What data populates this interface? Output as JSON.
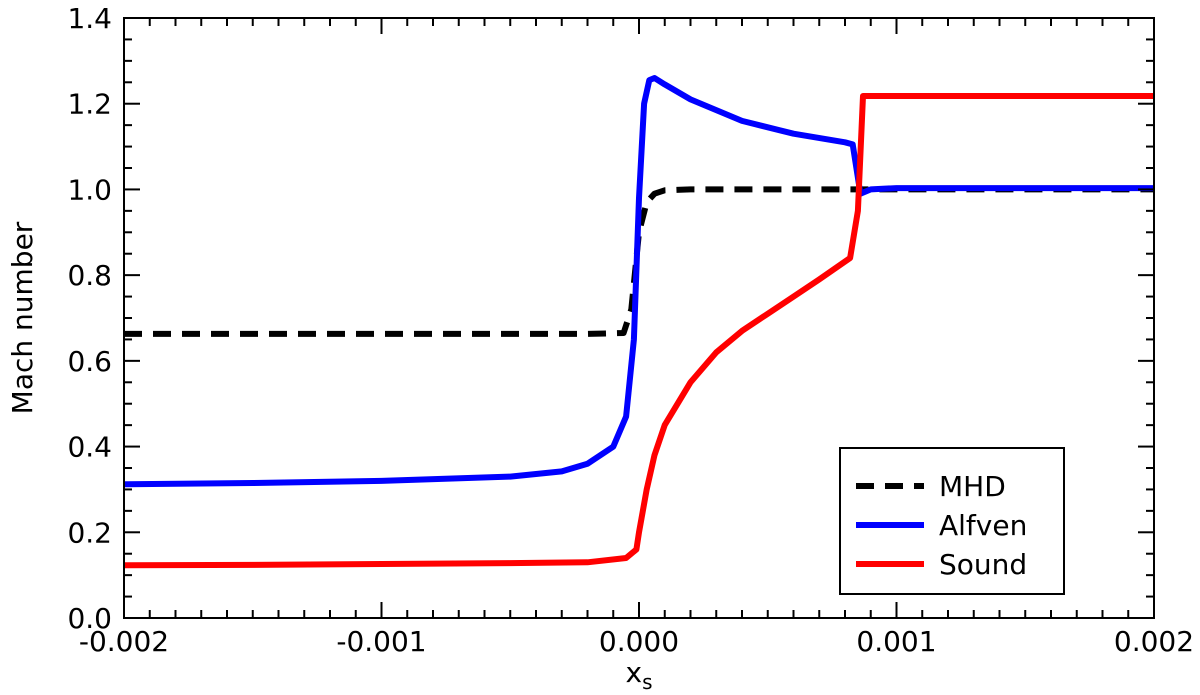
{
  "chart_data": {
    "type": "line",
    "title": "",
    "xlabel": "x",
    "xlabel_subscript": "s",
    "ylabel": "Mach number",
    "xlim": [
      -0.002,
      0.002
    ],
    "ylim": [
      0.0,
      1.4
    ],
    "xticks": [
      -0.002,
      -0.001,
      0.0,
      0.001,
      0.002
    ],
    "xtick_labels": [
      "-0.002",
      "-0.001",
      "0.000",
      "0.001",
      "0.002"
    ],
    "yticks": [
      0.0,
      0.2,
      0.4,
      0.6,
      0.8,
      1.0,
      1.2,
      1.4
    ],
    "ytick_labels": [
      "0.0",
      "0.2",
      "0.4",
      "0.6",
      "0.8",
      "1.0",
      "1.2",
      "1.4"
    ],
    "grid": false,
    "legend": "bottom-right",
    "series": [
      {
        "name": "MHD",
        "color": "#000000",
        "style": "dashed",
        "x": [
          -0.002,
          -0.0015,
          -0.001,
          -0.0005,
          -0.0002,
          -6e-05,
          -3e-05,
          0.0,
          3e-05,
          6e-05,
          0.0001,
          0.0002,
          0.0004,
          0.0006,
          0.0008,
          0.001,
          0.0015,
          0.002
        ],
        "y": [
          0.663,
          0.663,
          0.663,
          0.663,
          0.663,
          0.665,
          0.72,
          0.9,
          0.97,
          0.99,
          0.998,
          1.0,
          1.0,
          1.0,
          1.0,
          1.0,
          1.0,
          1.0
        ]
      },
      {
        "name": "Alfven",
        "color": "#0000ff",
        "style": "solid",
        "x": [
          -0.002,
          -0.0015,
          -0.001,
          -0.0005,
          -0.0003,
          -0.0002,
          -0.0001,
          -5e-05,
          -2e-05,
          0.0,
          2e-05,
          4e-05,
          6e-05,
          0.0001,
          0.0002,
          0.0004,
          0.0006,
          0.0008,
          0.00083,
          0.00086,
          0.0009,
          0.001,
          0.0015,
          0.002
        ],
        "y": [
          0.312,
          0.315,
          0.32,
          0.33,
          0.342,
          0.36,
          0.4,
          0.47,
          0.65,
          0.98,
          1.2,
          1.255,
          1.26,
          1.245,
          1.21,
          1.16,
          1.13,
          1.11,
          1.105,
          0.99,
          1.0,
          1.003,
          1.003,
          1.003
        ]
      },
      {
        "name": "Sound",
        "color": "#ff0000",
        "style": "solid",
        "x": [
          -0.002,
          -0.0015,
          -0.001,
          -0.0005,
          -0.0002,
          -5e-05,
          -1e-05,
          0.0,
          3e-05,
          6e-05,
          0.0001,
          0.0002,
          0.0003,
          0.0004,
          0.0005,
          0.0006,
          0.0007,
          0.00082,
          0.00085,
          0.00087,
          0.0009,
          0.001,
          0.0015,
          0.002
        ],
        "y": [
          0.123,
          0.124,
          0.126,
          0.128,
          0.13,
          0.14,
          0.16,
          0.2,
          0.3,
          0.38,
          0.45,
          0.55,
          0.62,
          0.67,
          0.71,
          0.75,
          0.79,
          0.84,
          0.95,
          1.218,
          1.218,
          1.218,
          1.218,
          1.218
        ]
      }
    ]
  }
}
